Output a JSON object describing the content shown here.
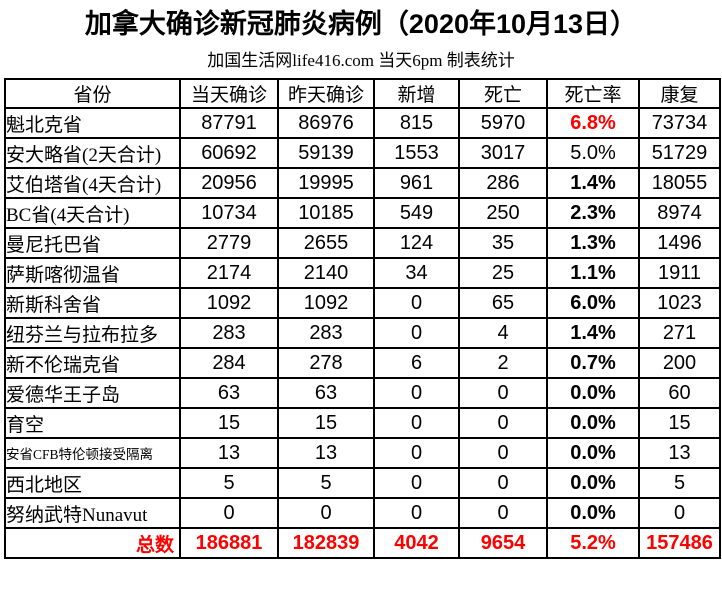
{
  "title": "加拿大确诊新冠肺炎病例（2020年10月13日）",
  "subtitle": "加国生活网life416.com 当天6pm 制表统计",
  "colors": {
    "highlight_red": "#ff0000",
    "text": "#000000",
    "border": "#000000",
    "background": "#ffffff"
  },
  "table": {
    "headers": [
      "省份",
      "当天确诊",
      "昨天确诊",
      "新增",
      "死亡",
      "死亡率",
      "康复"
    ],
    "rows": [
      {
        "province": "魁北克省",
        "today": "87791",
        "yesterday": "86976",
        "new": "815",
        "deaths": "5970",
        "death_rate": "6.8%",
        "recovered": "73734",
        "rate_style": "red-bold",
        "small_province": false
      },
      {
        "province": "安大略省(2天合计)",
        "today": "60692",
        "yesterday": "59139",
        "new": "1553",
        "deaths": "3017",
        "death_rate": "5.0%",
        "recovered": "51729",
        "rate_style": "normal",
        "small_province": false
      },
      {
        "province": "艾伯塔省(4天合计)",
        "today": "20956",
        "yesterday": "19995",
        "new": "961",
        "deaths": "286",
        "death_rate": "1.4%",
        "recovered": "18055",
        "rate_style": "bold",
        "small_province": false
      },
      {
        "province": "BC省(4天合计)",
        "today": "10734",
        "yesterday": "10185",
        "new": "549",
        "deaths": "250",
        "death_rate": "2.3%",
        "recovered": "8974",
        "rate_style": "bold",
        "small_province": false
      },
      {
        "province": "曼尼托巴省",
        "today": "2779",
        "yesterday": "2655",
        "new": "124",
        "deaths": "35",
        "death_rate": "1.3%",
        "recovered": "1496",
        "rate_style": "bold",
        "small_province": false
      },
      {
        "province": "萨斯喀彻温省",
        "today": "2174",
        "yesterday": "2140",
        "new": "34",
        "deaths": "25",
        "death_rate": "1.1%",
        "recovered": "1911",
        "rate_style": "bold",
        "small_province": false
      },
      {
        "province": "新斯科舍省",
        "today": "1092",
        "yesterday": "1092",
        "new": "0",
        "deaths": "65",
        "death_rate": "6.0%",
        "recovered": "1023",
        "rate_style": "bold",
        "small_province": false
      },
      {
        "province": "纽芬兰与拉布拉多",
        "today": "283",
        "yesterday": "283",
        "new": "0",
        "deaths": "4",
        "death_rate": "1.4%",
        "recovered": "271",
        "rate_style": "bold",
        "small_province": false
      },
      {
        "province": "新不伦瑞克省",
        "today": "284",
        "yesterday": "278",
        "new": "6",
        "deaths": "2",
        "death_rate": "0.7%",
        "recovered": "200",
        "rate_style": "bold",
        "small_province": false
      },
      {
        "province": "爱德华王子岛",
        "today": "63",
        "yesterday": "63",
        "new": "0",
        "deaths": "0",
        "death_rate": "0.0%",
        "recovered": "60",
        "rate_style": "bold",
        "small_province": false
      },
      {
        "province": "育空",
        "today": "15",
        "yesterday": "15",
        "new": "0",
        "deaths": "0",
        "death_rate": "0.0%",
        "recovered": "15",
        "rate_style": "bold",
        "small_province": false
      },
      {
        "province": "安省CFB特伦顿接受隔离",
        "today": "13",
        "yesterday": "13",
        "new": "0",
        "deaths": "0",
        "death_rate": "0.0%",
        "recovered": "13",
        "rate_style": "bold",
        "small_province": true
      },
      {
        "province": "西北地区",
        "today": "5",
        "yesterday": "5",
        "new": "0",
        "deaths": "0",
        "death_rate": "0.0%",
        "recovered": "5",
        "rate_style": "bold",
        "small_province": false
      },
      {
        "province": "努纳武特Nunavut",
        "today": "0",
        "yesterday": "0",
        "new": "0",
        "deaths": "0",
        "death_rate": "0.0%",
        "recovered": "0",
        "rate_style": "bold",
        "small_province": false
      }
    ],
    "total": {
      "label": "总数",
      "today": "186881",
      "yesterday": "182839",
      "new": "4042",
      "deaths": "9654",
      "death_rate": "5.2%",
      "recovered": "157486"
    }
  },
  "chart_data": {
    "type": "table",
    "title": "加拿大确诊新冠肺炎病例（2020年10月13日）",
    "subtitle": "加国生活网life416.com 当天6pm 制表统计",
    "columns": [
      "省份",
      "当天确诊",
      "昨天确诊",
      "新增",
      "死亡",
      "死亡率",
      "康复"
    ],
    "rows": [
      [
        "魁北克省",
        87791,
        86976,
        815,
        5970,
        "6.8%",
        73734
      ],
      [
        "安大略省(2天合计)",
        60692,
        59139,
        1553,
        3017,
        "5.0%",
        51729
      ],
      [
        "艾伯塔省(4天合计)",
        20956,
        19995,
        961,
        286,
        "1.4%",
        18055
      ],
      [
        "BC省(4天合计)",
        10734,
        10185,
        549,
        250,
        "2.3%",
        8974
      ],
      [
        "曼尼托巴省",
        2779,
        2655,
        124,
        35,
        "1.3%",
        1496
      ],
      [
        "萨斯喀彻温省",
        2174,
        2140,
        34,
        25,
        "1.1%",
        1911
      ],
      [
        "新斯科舍省",
        1092,
        1092,
        0,
        65,
        "6.0%",
        1023
      ],
      [
        "纽芬兰与拉布拉多",
        283,
        283,
        0,
        4,
        "1.4%",
        271
      ],
      [
        "新不伦瑞克省",
        284,
        278,
        6,
        2,
        "0.7%",
        200
      ],
      [
        "爱德华王子岛",
        63,
        63,
        0,
        0,
        "0.0%",
        60
      ],
      [
        "育空",
        15,
        15,
        0,
        0,
        "0.0%",
        15
      ],
      [
        "安省CFB特伦顿接受隔离",
        13,
        13,
        0,
        0,
        "0.0%",
        13
      ],
      [
        "西北地区",
        5,
        5,
        0,
        0,
        "0.0%",
        5
      ],
      [
        "努纳武特Nunavut",
        0,
        0,
        0,
        0,
        "0.0%",
        0
      ]
    ],
    "total_row": [
      "总数",
      186881,
      182839,
      4042,
      9654,
      "5.2%",
      157486
    ],
    "notes": "总数 row and 魁北克省 death rate 6.8% rendered in red; most death-rate cells bold"
  }
}
